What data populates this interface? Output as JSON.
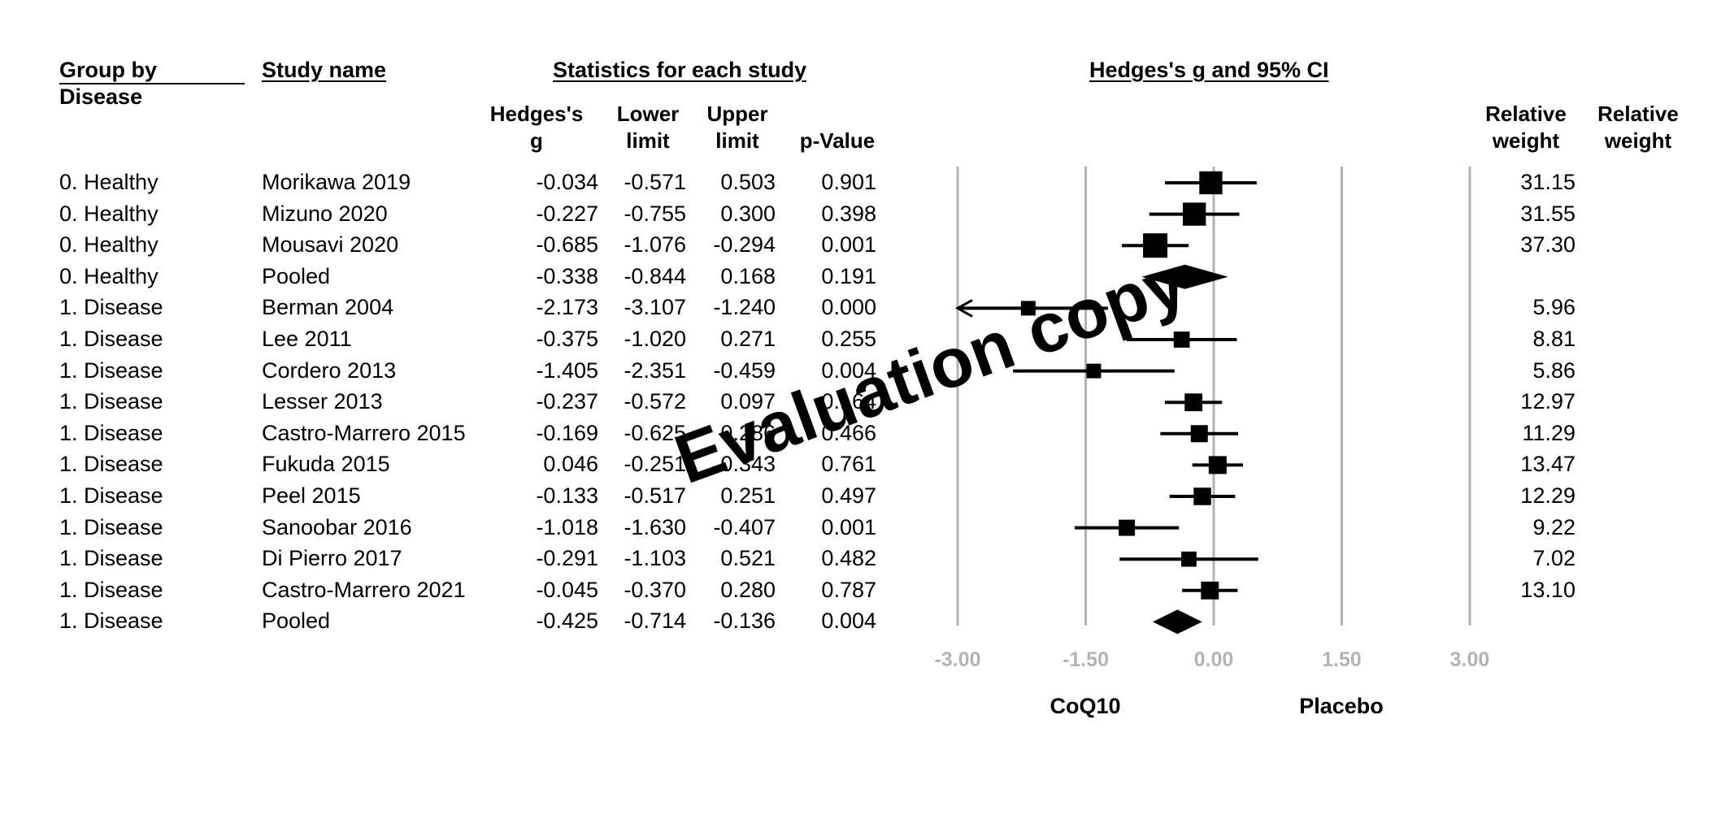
{
  "headers": {
    "group": "Group by",
    "group2": "Disease",
    "study": "Study name",
    "stats": "Statistics for each study",
    "plot": "Hedges's g and 95% CI",
    "hedges": "Hedges's g",
    "lower": "Lower limit",
    "upper": "Upper limit",
    "pvalue": "p-Value",
    "relweight1": "Relative weight",
    "relweight2": "Relative weight"
  },
  "rows": [
    {
      "group": "0. Healthy",
      "study": "Morikawa 2019",
      "g": "-0.034",
      "lower": "-0.571",
      "upper": "0.503",
      "p": "0.901",
      "weight": "31.15"
    },
    {
      "group": "0. Healthy",
      "study": "Mizuno 2020",
      "g": "-0.227",
      "lower": "-0.755",
      "upper": "0.300",
      "p": "0.398",
      "weight": "31.55"
    },
    {
      "group": "0. Healthy",
      "study": "Mousavi 2020",
      "g": "-0.685",
      "lower": "-1.076",
      "upper": "-0.294",
      "p": "0.001",
      "weight": "37.30"
    },
    {
      "group": "0. Healthy",
      "study": "Pooled",
      "g": "-0.338",
      "lower": "-0.844",
      "upper": "0.168",
      "p": "0.191",
      "weight": ""
    },
    {
      "group": "1. Disease",
      "study": "Berman 2004",
      "g": "-2.173",
      "lower": "-3.107",
      "upper": "-1.240",
      "p": "0.000",
      "weight": "5.96"
    },
    {
      "group": "1. Disease",
      "study": "Lee 2011",
      "g": "-0.375",
      "lower": "-1.020",
      "upper": "0.271",
      "p": "0.255",
      "weight": "8.81"
    },
    {
      "group": "1. Disease",
      "study": "Cordero 2013",
      "g": "-1.405",
      "lower": "-2.351",
      "upper": "-0.459",
      "p": "0.004",
      "weight": "5.86"
    },
    {
      "group": "1. Disease",
      "study": "Lesser 2013",
      "g": "-0.237",
      "lower": "-0.572",
      "upper": "0.097",
      "p": "0.164",
      "weight": "12.97"
    },
    {
      "group": "1. Disease",
      "study": "Castro-Marrero 2015",
      "g": "-0.169",
      "lower": "-0.625",
      "upper": "0.286",
      "p": "0.466",
      "weight": "11.29"
    },
    {
      "group": "1. Disease",
      "study": "Fukuda 2015",
      "g": "0.046",
      "lower": "-0.251",
      "upper": "0.343",
      "p": "0.761",
      "weight": "13.47"
    },
    {
      "group": "1. Disease",
      "study": "Peel 2015",
      "g": "-0.133",
      "lower": "-0.517",
      "upper": "0.251",
      "p": "0.497",
      "weight": "12.29"
    },
    {
      "group": "1. Disease",
      "study": "Sanoobar 2016",
      "g": "-1.018",
      "lower": "-1.630",
      "upper": "-0.407",
      "p": "0.001",
      "weight": "9.22"
    },
    {
      "group": "1. Disease",
      "study": "Di Pierro 2017",
      "g": "-0.291",
      "lower": "-1.103",
      "upper": "0.521",
      "p": "0.482",
      "weight": "7.02"
    },
    {
      "group": "1. Disease",
      "study": "Castro-Marrero 2021",
      "g": "-0.045",
      "lower": "-0.370",
      "upper": "0.280",
      "p": "0.787",
      "weight": "13.10"
    },
    {
      "group": "1. Disease",
      "study": "Pooled",
      "g": "-0.425",
      "lower": "-0.714",
      "upper": "-0.136",
      "p": "0.004",
      "weight": ""
    }
  ],
  "labels": {
    "left": "CoQ10",
    "right": "Placebo"
  },
  "watermark": "Evaluation copy",
  "chart_data": {
    "type": "forest",
    "x_ticks": [
      "-3.00",
      "-1.50",
      "0.00",
      "1.50",
      "3.00"
    ],
    "xlim": [
      -3,
      3
    ],
    "grid": true,
    "points": [
      {
        "study": "Morikawa 2019",
        "g": -0.034,
        "lower": -0.571,
        "upper": 0.503,
        "weight": 31.15,
        "pooled": false
      },
      {
        "study": "Mizuno 2020",
        "g": -0.227,
        "lower": -0.755,
        "upper": 0.3,
        "weight": 31.55,
        "pooled": false
      },
      {
        "study": "Mousavi 2020",
        "g": -0.685,
        "lower": -1.076,
        "upper": -0.294,
        "weight": 37.3,
        "pooled": false
      },
      {
        "study": "Pooled",
        "g": -0.338,
        "lower": -0.844,
        "upper": 0.168,
        "weight": null,
        "pooled": true
      },
      {
        "study": "Berman 2004",
        "g": -2.173,
        "lower": -3.107,
        "upper": -1.24,
        "weight": 5.96,
        "pooled": false
      },
      {
        "study": "Lee 2011",
        "g": -0.375,
        "lower": -1.02,
        "upper": 0.271,
        "weight": 8.81,
        "pooled": false
      },
      {
        "study": "Cordero 2013",
        "g": -1.405,
        "lower": -2.351,
        "upper": -0.459,
        "weight": 5.86,
        "pooled": false
      },
      {
        "study": "Lesser 2013",
        "g": -0.237,
        "lower": -0.572,
        "upper": 0.097,
        "weight": 12.97,
        "pooled": false
      },
      {
        "study": "Castro-Marrero 2015",
        "g": -0.169,
        "lower": -0.625,
        "upper": 0.286,
        "weight": 11.29,
        "pooled": false
      },
      {
        "study": "Fukuda 2015",
        "g": 0.046,
        "lower": -0.251,
        "upper": 0.343,
        "weight": 13.47,
        "pooled": false
      },
      {
        "study": "Peel 2015",
        "g": -0.133,
        "lower": -0.517,
        "upper": 0.251,
        "weight": 12.29,
        "pooled": false
      },
      {
        "study": "Sanoobar 2016",
        "g": -1.018,
        "lower": -1.63,
        "upper": -0.407,
        "weight": 9.22,
        "pooled": false
      },
      {
        "study": "Di Pierro 2017",
        "g": -0.291,
        "lower": -1.103,
        "upper": 0.521,
        "weight": 7.02,
        "pooled": false
      },
      {
        "study": "Castro-Marrero 2021",
        "g": -0.045,
        "lower": -0.37,
        "upper": 0.28,
        "weight": 13.1,
        "pooled": false
      },
      {
        "study": "Pooled",
        "g": -0.425,
        "lower": -0.714,
        "upper": -0.136,
        "weight": null,
        "pooled": true
      }
    ],
    "gridline_color": "#b3b3b3",
    "tick_label_color": "#b3b3b3",
    "mark_color": "#000000"
  }
}
